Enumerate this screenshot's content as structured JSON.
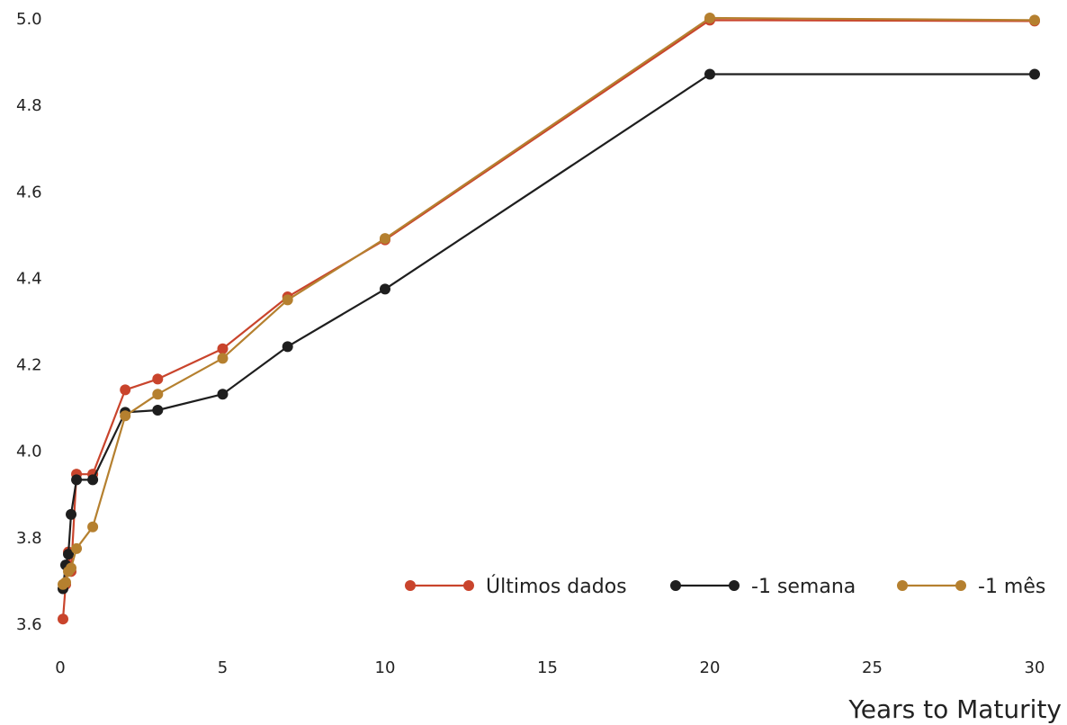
{
  "chart_data": {
    "type": "line",
    "title": "",
    "xlabel": "Years to Maturity",
    "ylabel": "",
    "xlim": [
      0,
      30
    ],
    "ylim": [
      3.6,
      5.0
    ],
    "xticks": [
      0,
      5,
      10,
      15,
      20,
      25,
      30
    ],
    "yticks": [
      3.6,
      3.8,
      4.0,
      4.2,
      4.4,
      4.6,
      4.8,
      5.0
    ],
    "grid": false,
    "legend_position": "bottom-right",
    "series": [
      {
        "name": "Últimos dados",
        "color": "#c9442c",
        "x": [
          0.083,
          0.167,
          0.25,
          0.333,
          0.5,
          1,
          2,
          3,
          5,
          7,
          10,
          20,
          30
        ],
        "y": [
          3.61,
          3.69,
          3.765,
          3.72,
          3.945,
          3.945,
          4.14,
          4.165,
          4.235,
          4.355,
          4.487,
          4.995,
          4.993
        ]
      },
      {
        "name": "-1 semana",
        "color": "#1e1e1e",
        "x": [
          0.083,
          0.167,
          0.25,
          0.333,
          0.5,
          1,
          2,
          3,
          5,
          7,
          10,
          20,
          30
        ],
        "y": [
          3.68,
          3.735,
          3.76,
          3.852,
          3.932,
          3.932,
          4.088,
          4.093,
          4.13,
          4.24,
          4.373,
          4.87,
          4.87
        ]
      },
      {
        "name": "-1 mês",
        "color": "#b5802f",
        "x": [
          0.083,
          0.167,
          0.25,
          0.333,
          0.5,
          1,
          2,
          3,
          5,
          7,
          10,
          20,
          30
        ],
        "y": [
          3.69,
          3.695,
          3.72,
          3.728,
          3.773,
          3.823,
          4.08,
          4.13,
          4.213,
          4.348,
          4.49,
          5.0,
          4.995
        ]
      }
    ]
  }
}
